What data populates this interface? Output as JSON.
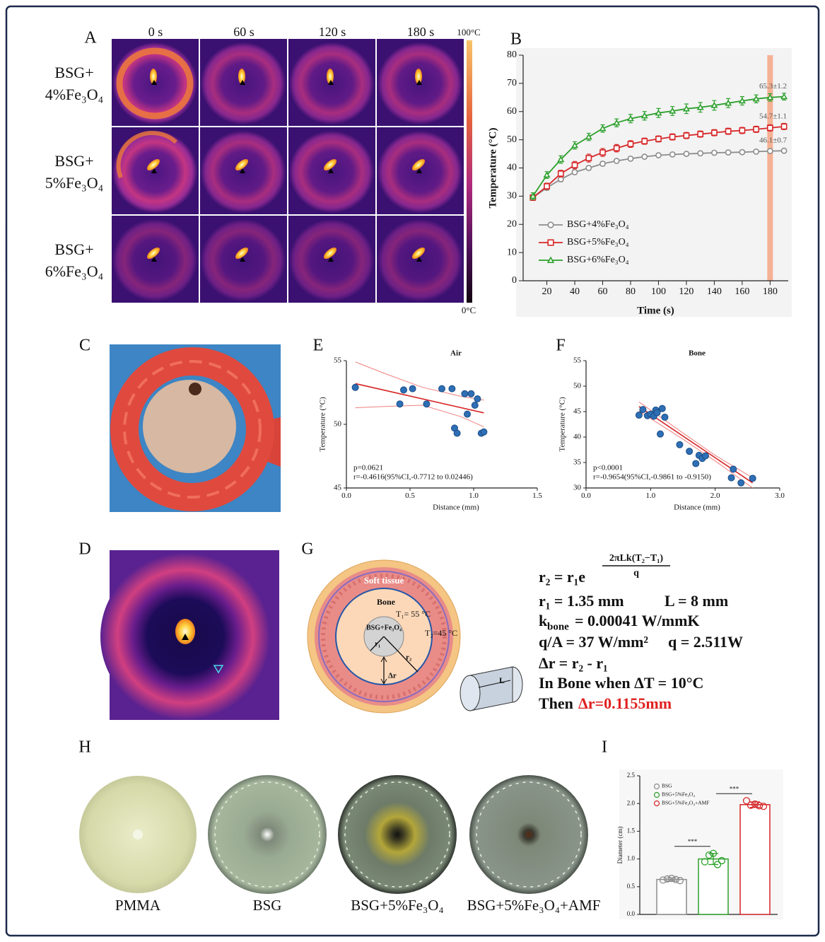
{
  "panel_labels": [
    "A",
    "B",
    "C",
    "D",
    "E",
    "F",
    "G",
    "H",
    "I"
  ],
  "thermal": {
    "columns": [
      "0 s",
      "60 s",
      "120 s",
      "180 s"
    ],
    "rows": [
      [
        "BSG+",
        "4%Fe₃O₄"
      ],
      [
        "BSG+",
        "5%Fe₃O₄"
      ],
      [
        "BSG+",
        "6%Fe₃O₄"
      ]
    ],
    "colorbar_max": "100°C",
    "colorbar_min": "0°C"
  },
  "chart_data": [
    {
      "type": "line",
      "y_label": "Temperature (°C)",
      "x_label": "Time (s)",
      "x": [
        10,
        20,
        30,
        40,
        50,
        60,
        70,
        80,
        90,
        100,
        110,
        120,
        130,
        140,
        150,
        160,
        170,
        180,
        190
      ],
      "xlim": [
        3,
        193
      ],
      "xticks": [
        20,
        40,
        60,
        80,
        100,
        120,
        140,
        160,
        180
      ],
      "ylim": [
        0,
        80
      ],
      "yticks": [
        0,
        10,
        20,
        30,
        40,
        50,
        60,
        70,
        80
      ],
      "highlight_x": 180,
      "highlight_color": "#f4a582",
      "legend": "lower left",
      "series": [
        {
          "name": "BSG+4%Fe₃O₄",
          "color": "#8c8c8c",
          "marker": "circle",
          "end_label": "46.1±0.7",
          "values": [
            29.5,
            33,
            36,
            38.5,
            40,
            41.5,
            42.5,
            43.3,
            44,
            44.5,
            44.8,
            45,
            45.2,
            45.4,
            45.5,
            45.6,
            45.8,
            46,
            46.1
          ],
          "errors": [
            0.8,
            0.9,
            0.9,
            0.8,
            0.8,
            0.8,
            0.7,
            0.7,
            0.7,
            0.7,
            0.7,
            0.7,
            0.7,
            0.7,
            0.7,
            0.7,
            0.7,
            0.7,
            0.7
          ]
        },
        {
          "name": "BSG+5%Fe₃O₄",
          "color": "#d62728",
          "marker": "square",
          "end_label": "54.7±1.1",
          "values": [
            29.5,
            33.5,
            38,
            41,
            43.5,
            45.5,
            47,
            48.5,
            49.5,
            50.3,
            51,
            51.5,
            52,
            52.5,
            53,
            53.3,
            53.7,
            54.2,
            54.7
          ],
          "errors": [
            1,
            1.1,
            1.2,
            1.3,
            1.4,
            1.4,
            1.3,
            1.2,
            1.1,
            1.1,
            1.1,
            1.1,
            1.1,
            1.1,
            1.1,
            1.1,
            1.1,
            1.1,
            1.1
          ]
        },
        {
          "name": "BSG+6%Fe₃O₄",
          "color": "#2ca02c",
          "marker": "triangle",
          "end_label": "65.3±1.2",
          "values": [
            30,
            37.5,
            43,
            48,
            51,
            54,
            56,
            57.5,
            58.5,
            59.5,
            60.2,
            61,
            61.5,
            62.2,
            63,
            63.8,
            64.5,
            65,
            65.3
          ],
          "errors": [
            1.2,
            1.2,
            1.3,
            1.3,
            1.3,
            1.3,
            1.4,
            1.5,
            1.5,
            1.6,
            1.6,
            1.7,
            1.7,
            1.7,
            1.6,
            1.5,
            1.4,
            1.3,
            1.2
          ]
        }
      ]
    },
    {
      "type": "scatter",
      "title": "Air",
      "y_label": "Temperature (°C)",
      "x_label": "Distance (mm)",
      "color": "#2e6fb5",
      "x": [
        0.07,
        0.42,
        0.45,
        0.52,
        0.63,
        0.75,
        0.83,
        0.85,
        0.87,
        0.93,
        0.95,
        0.98,
        1.01,
        1.03,
        1.06,
        1.08
      ],
      "values": [
        52.9,
        51.6,
        52.7,
        52.8,
        51.6,
        52.8,
        52.8,
        49.7,
        49.3,
        52.4,
        50.8,
        52.4,
        51.5,
        52.0,
        49.3,
        49.4
      ],
      "fit": {
        "color": "#d62728",
        "x": [
          0.07,
          1.08
        ],
        "values": [
          53.2,
          50.9
        ]
      },
      "ci": {
        "color": "#f08080",
        "x": [
          0.07,
          0.3,
          0.6,
          0.9,
          1.08
        ],
        "upper": [
          54.9,
          54.0,
          52.9,
          52.2,
          51.9
        ],
        "lower": [
          51.3,
          51.4,
          51.5,
          50.6,
          49.8
        ]
      },
      "xlim": [
        0,
        1.5
      ],
      "xticks": [
        {
          "value": 0,
          "label": "0.0"
        },
        0.5,
        {
          "value": 1,
          "label": "1.0"
        },
        1.5
      ],
      "ylim": [
        45,
        55
      ],
      "yticks": [
        45,
        50,
        55
      ],
      "annotations": [
        "p=0.0621",
        "r=-0.4616(95%CI,-0.7712 to 0.02446)"
      ]
    },
    {
      "type": "scatter",
      "title": "Bone",
      "y_label": "Temperature (°C)",
      "x_label": "Distance (mm)",
      "color": "#2e6fb5",
      "x": [
        0.82,
        0.88,
        0.95,
        1.0,
        1.05,
        1.08,
        1.1,
        1.15,
        1.18,
        1.22,
        1.45,
        1.6,
        1.7,
        1.75,
        1.8,
        1.85,
        2.25,
        2.28,
        2.4,
        2.58
      ],
      "values": [
        44.3,
        45.4,
        44.2,
        44.5,
        44.1,
        45.3,
        44.8,
        40.6,
        45.6,
        43.9,
        38.5,
        37.2,
        34.8,
        36.4,
        35.8,
        36.3,
        32.0,
        33.7,
        31.0,
        31.9
      ],
      "fit": {
        "color": "#d62728",
        "x": [
          0.82,
          2.58
        ],
        "values": [
          46,
          31
        ]
      },
      "ci": {
        "color": "#f08080",
        "x": [
          0.82,
          1.5,
          2,
          2.58
        ],
        "upper": [
          46.9,
          40.8,
          36.4,
          32.0
        ],
        "lower": [
          45.1,
          39.6,
          35.3,
          30.0
        ]
      },
      "xlim": [
        0,
        3
      ],
      "xticks": [
        {
          "value": 0,
          "label": "0.0"
        },
        {
          "value": 1,
          "label": "1.0"
        },
        {
          "value": 2,
          "label": "2.0"
        },
        {
          "value": 3,
          "label": "3.0"
        }
      ],
      "ylim": [
        30,
        55
      ],
      "yticks": [
        30,
        35,
        40,
        45,
        50,
        55
      ],
      "annotations": [
        "p<0.0001",
        "r=-0.9654(95%CI,-0.9861 to -0.9150)"
      ]
    },
    {
      "type": "bar",
      "y_label": "Diameter (cm)",
      "categories": [
        "BSG",
        "BSG+5%Fe₃O₄",
        "BSG+5%Fe₃O₄+AMF"
      ],
      "colors": [
        "#8c8c8c",
        "#2ca02c",
        "#d62728"
      ],
      "values": [
        0.63,
        1.0,
        1.98
      ],
      "errors": [
        0.03,
        0.1,
        0.05
      ],
      "points": [
        [
          0.62,
          0.64,
          0.65,
          0.63,
          0.61
        ],
        [
          0.95,
          1.07,
          1.1,
          0.9,
          0.97
        ],
        [
          2.05,
          1.97,
          1.99,
          1.96,
          1.95
        ]
      ],
      "significance": [
        "***",
        "***"
      ],
      "ylim": [
        0,
        2.5
      ],
      "yticks": [
        {
          "value": 0,
          "label": "0.0"
        },
        0.5,
        {
          "value": 1,
          "label": "1.0"
        },
        1.5,
        {
          "value": 2,
          "label": "2.0"
        },
        2.5
      ],
      "legend": "upper left"
    }
  ],
  "diagram": {
    "soft_tissue": "Soft tissue",
    "bone": "Bone",
    "t1": "T₁= 55 °C",
    "t2": "T₂=45 °C",
    "core": "BSG+Fe₃O₄",
    "r1": "r₁",
    "r2": "r₂",
    "dr": "Δr",
    "length": "L"
  },
  "formula": {
    "r2": "r₂ = r₁e",
    "exponent": "2πLk(T₂−T₁)",
    "denominator": "q",
    "r1": "r₁ = 1.35 mm",
    "L": "L = 8 mm",
    "k": "k",
    "k_sub": "bone",
    "k_value": "= 0.00041 W/mmK",
    "qA": "q/A = 37 W/mm²",
    "q": "q = 2.511W",
    "dr": "Δr = r₂ - r₁",
    "condition": "In Bone when ΔT = 10°C",
    "then": "Then",
    "result": "Δr=0.1155mm"
  },
  "dishes": [
    "PMMA",
    "BSG",
    "BSG+5%Fe₃O₄",
    "BSG+5%Fe₃O₄+AMF"
  ]
}
